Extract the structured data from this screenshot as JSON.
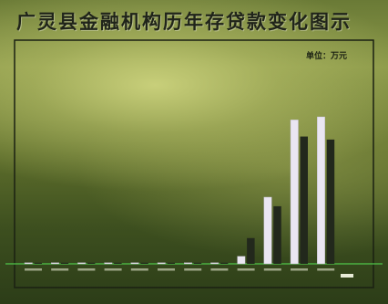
{
  "title": "广灵县金融机构历年存贷款变化图示",
  "unit_label": "单位：万元",
  "colors": {
    "deposit": "#eae6f2",
    "loan": "#22281c",
    "baseline": "#4fc54a",
    "border": "#1a2012"
  },
  "chart_data": {
    "type": "bar",
    "title": "广灵县金融机构历年存贷款变化图示",
    "unit": "单位：万元",
    "categories": [
      "",
      "",
      "",
      "",
      "",
      "",
      "",
      "",
      "",
      "",
      "",
      ""
    ],
    "series": [
      {
        "values": [
          0,
          0,
          0,
          0,
          0,
          0,
          0,
          0,
          0.05,
          0.44,
          0.95,
          0.97
        ]
      },
      {
        "values": [
          0,
          0,
          0,
          0,
          0,
          0,
          0,
          0,
          0.17,
          0.38,
          0.84,
          0.82
        ]
      }
    ],
    "value_scale": "relative (fraction of plot height); printed value labels are illegible",
    "ylim": [
      0,
      1
    ],
    "grid": false,
    "legend": "none"
  }
}
